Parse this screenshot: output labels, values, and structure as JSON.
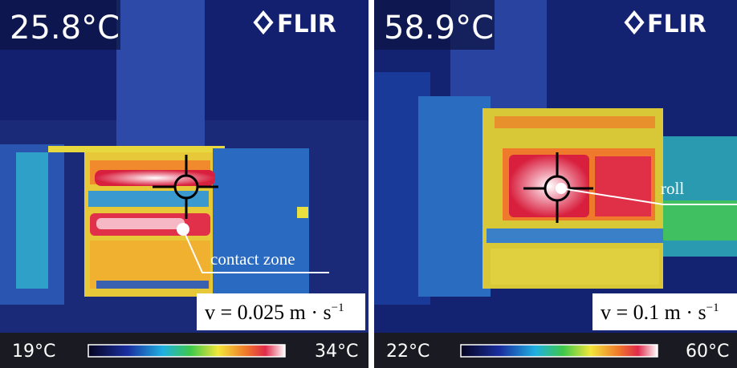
{
  "panels": [
    {
      "reading": "25.8°C",
      "brand": "FLIR",
      "annotation": "contact zone",
      "speed": {
        "text": "v = 0.025 m · s",
        "exponent": "−1"
      },
      "scale_min": "19°C",
      "scale_max": "34°C"
    },
    {
      "reading": "58.9°C",
      "brand": "FLIR",
      "annotation": "roll",
      "speed": {
        "text": "v = 0.1 m · s",
        "exponent": "−1"
      },
      "scale_min": "22°C",
      "scale_max": "60°C"
    }
  ]
}
